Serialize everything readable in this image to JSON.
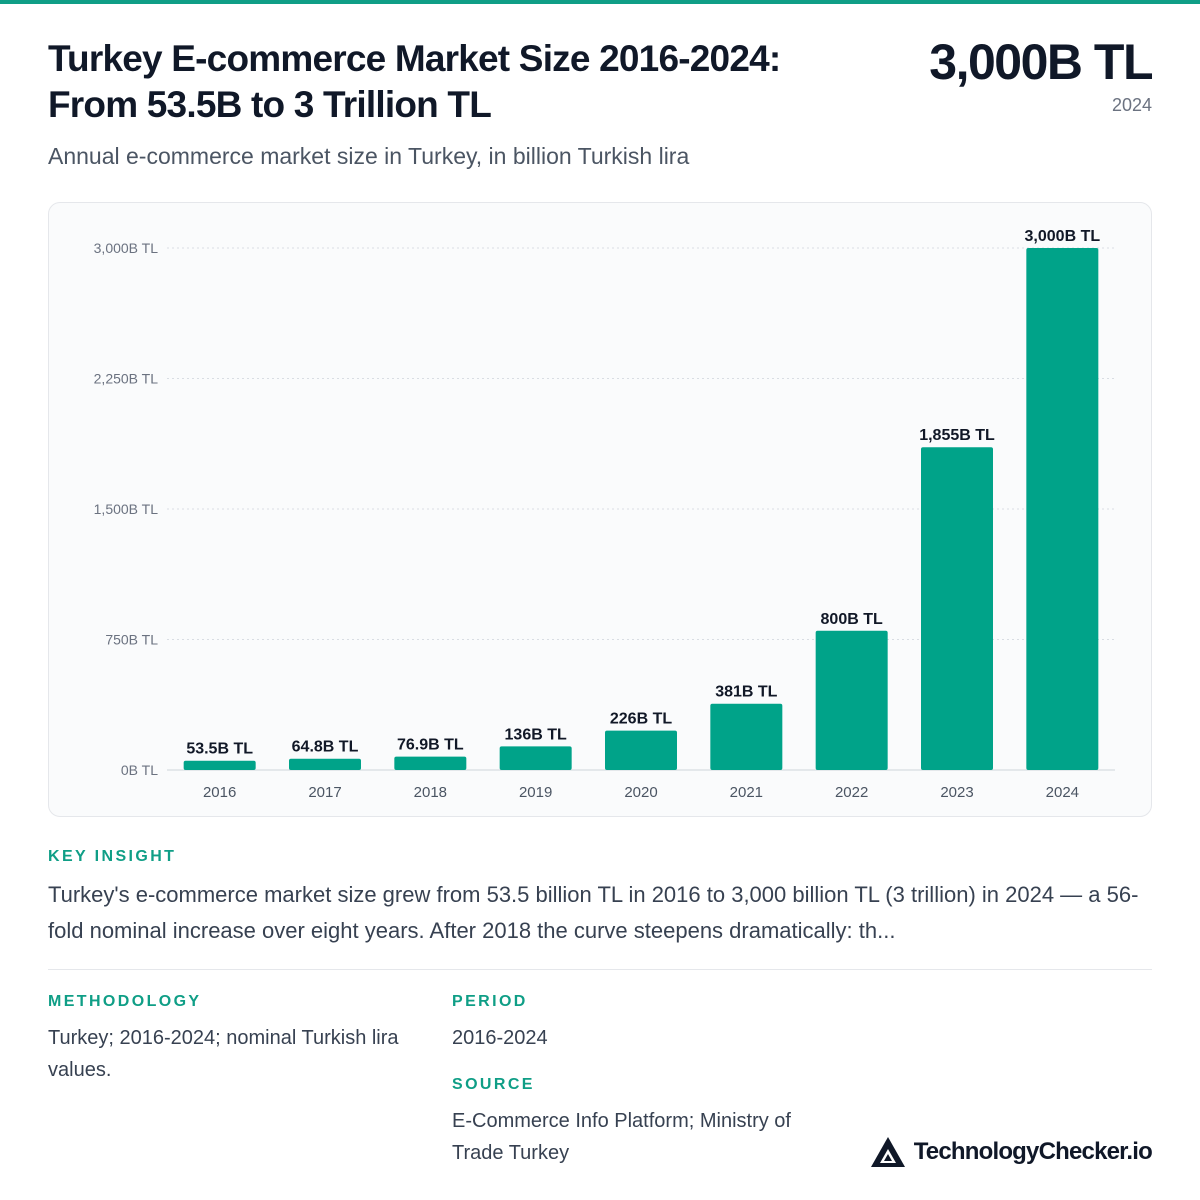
{
  "header": {
    "title_line1": "Turkey E-commerce Market Size 2016-2024:",
    "title_line2": "From 53.5B to 3 Trillion TL",
    "headline_value": "3,000B TL",
    "headline_year": "2024",
    "subtitle": "Annual e-commerce market size in Turkey, in billion Turkish lira"
  },
  "chart_data": {
    "type": "bar",
    "categories": [
      "2016",
      "2017",
      "2018",
      "2019",
      "2020",
      "2021",
      "2022",
      "2023",
      "2024"
    ],
    "values": [
      53.5,
      64.8,
      76.9,
      136,
      226,
      381,
      800,
      1855,
      3000
    ],
    "data_labels": [
      "53.5B TL",
      "64.8B TL",
      "76.9B TL",
      "136B TL",
      "226B TL",
      "381B TL",
      "800B TL",
      "1,855B TL",
      "3,000B TL"
    ],
    "y_ticks": [
      0,
      750,
      1500,
      2250,
      3000
    ],
    "y_tick_labels": [
      "0B TL",
      "750B TL",
      "1,500B TL",
      "2,250B TL",
      "3,000B TL"
    ],
    "ylim": [
      0,
      3000
    ],
    "grid": true,
    "bar_color": "#00a389"
  },
  "insight": {
    "label": "KEY INSIGHT",
    "text": "Turkey's e-commerce market size grew from 53.5 billion TL in 2016 to 3,000 billion TL (3 trillion) in 2024 — a 56-fold nominal increase over eight years. After 2018 the curve steepens dramatically: th..."
  },
  "methodology": {
    "label": "METHODOLOGY",
    "text": "Turkey; 2016-2024; nominal Turkish lira values."
  },
  "period": {
    "label": "PERIOD",
    "text": "2016-2024"
  },
  "source": {
    "label": "SOURCE",
    "text": "E-Commerce Info Platform; Ministry of Trade Turkey"
  },
  "brand": {
    "name": "TechnologyChecker.io",
    "icon": "triangle-logo-icon"
  },
  "colors": {
    "accent": "#0f9e86",
    "bar": "#00a389",
    "title": "#101828"
  }
}
